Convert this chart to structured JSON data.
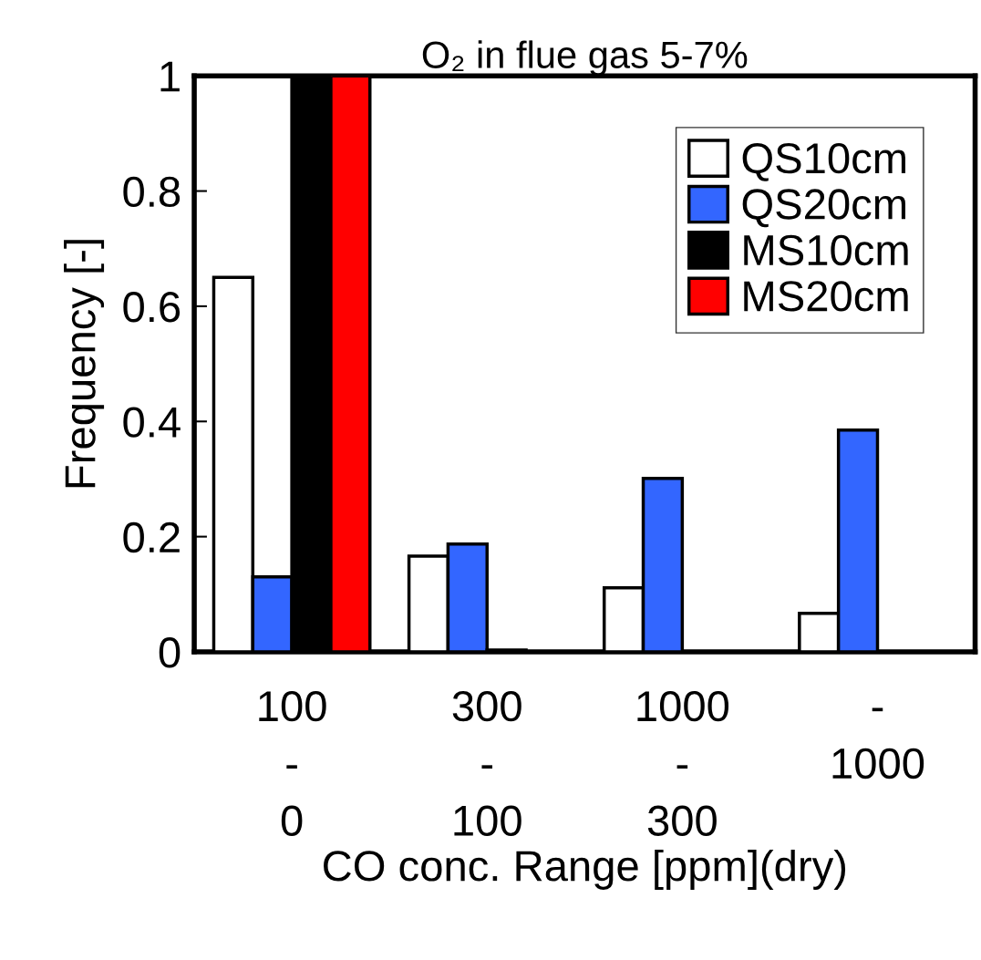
{
  "chart_data": {
    "type": "bar",
    "title": "O₂ in flue gas 5-7%",
    "xlabel": "CO conc. Range [ppm](dry)",
    "ylabel": "Frequency [-]",
    "categories": [
      "100\n-\n0",
      "300\n-\n100",
      "1000\n-\n300",
      "-\n1000"
    ],
    "series": [
      {
        "name": "QS10cm",
        "color": "#ffffff",
        "values": [
          0.65,
          0.166,
          0.111,
          0.067
        ]
      },
      {
        "name": "QS20cm",
        "color": "#3366ff",
        "values": [
          0.13,
          0.187,
          0.301,
          0.385
        ]
      },
      {
        "name": "MS10cm",
        "color": "#000000",
        "values": [
          1,
          0.003,
          0,
          0
        ]
      },
      {
        "name": "MS20cm",
        "color": "#ff0000",
        "values": [
          1,
          0,
          0,
          0
        ]
      }
    ],
    "ylim": [
      0,
      1
    ],
    "yticks": [
      0,
      0.2,
      0.4,
      0.6,
      0.8,
      1
    ],
    "grid": false,
    "legend": "top right"
  }
}
